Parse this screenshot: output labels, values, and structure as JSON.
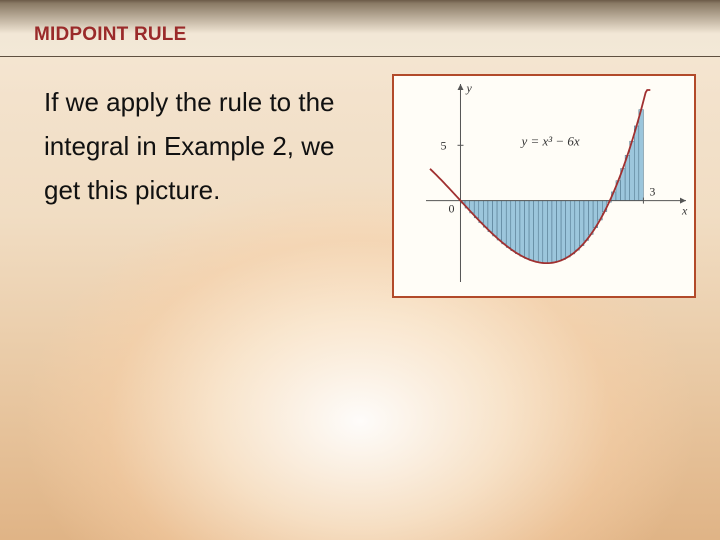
{
  "header": {
    "title": "MIDPOINT RULE"
  },
  "body": {
    "text": "If we apply the rule to the integral in Example 2, we get this picture."
  },
  "chart": {
    "type": "riemann-midpoint",
    "background_color": "#fffdf7",
    "border_color": "#b24a2a",
    "axis_color": "#555555",
    "curve_color": "#a03030",
    "bar_fill": "#9cc6dc",
    "bar_stroke": "#4a6f86",
    "x_domain": [
      -0.5,
      3.6
    ],
    "y_domain": [
      -7,
      10
    ],
    "x_axis_arrow": true,
    "y_axis_arrow": true,
    "x_ticks": [
      {
        "value": 3,
        "label": "3"
      }
    ],
    "y_ticks": [
      {
        "value": 5,
        "label": "5"
      }
    ],
    "x_label": "x",
    "y_label": "y",
    "origin_label": "0",
    "equation": "y = x³ − 6x",
    "function": "x^3 - 6*x",
    "riemann": {
      "a": 0,
      "b": 3,
      "n": 40
    },
    "curve_width": 1.8,
    "bar_stroke_width": 0.5,
    "font_size_axis": 12,
    "font_size_eqn": 13
  },
  "colors": {
    "slide_accent": "#b24a2a",
    "title_color": "#9a2a2a"
  }
}
